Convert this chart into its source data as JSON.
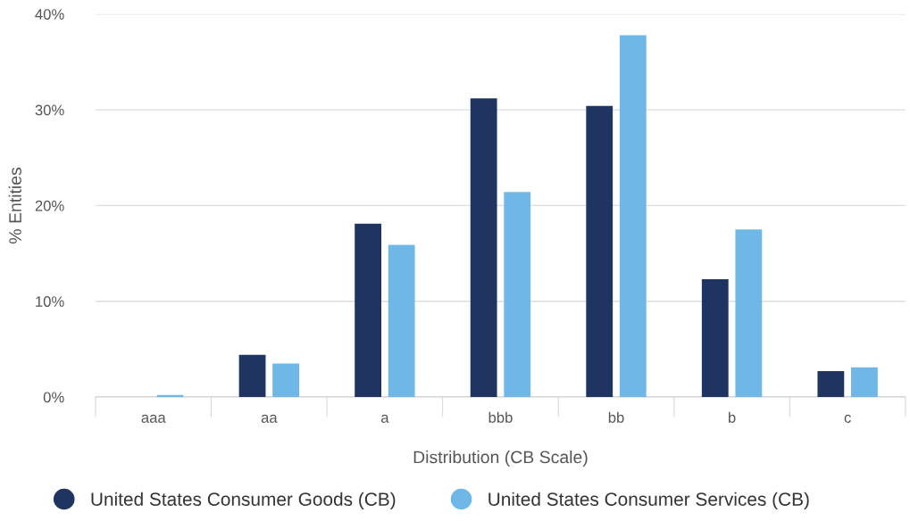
{
  "chart_data": {
    "type": "bar",
    "xlabel": "Distribution (CB Scale)",
    "ylabel": "% Entities",
    "categories": [
      "aaa",
      "aa",
      "a",
      "bbb",
      "bb",
      "b",
      "c"
    ],
    "series": [
      {
        "name": "United States Consumer Goods (CB)",
        "color": "#1f3460",
        "values": [
          0,
          4.4,
          18.1,
          31.2,
          30.4,
          12.3,
          2.7
        ]
      },
      {
        "name": "United States Consumer Services (CB)",
        "color": "#6fb7e6",
        "values": [
          0.2,
          3.5,
          15.9,
          21.4,
          37.8,
          17.5,
          3.1
        ]
      }
    ],
    "ylim": [
      0,
      40
    ],
    "yticks": [
      {
        "value": 0,
        "label": "0%"
      },
      {
        "value": 10,
        "label": "10%"
      },
      {
        "value": 20,
        "label": "20%"
      },
      {
        "value": 30,
        "label": "30%"
      },
      {
        "value": 40,
        "label": "40%"
      }
    ],
    "grid": "y",
    "legend": "bottom"
  }
}
